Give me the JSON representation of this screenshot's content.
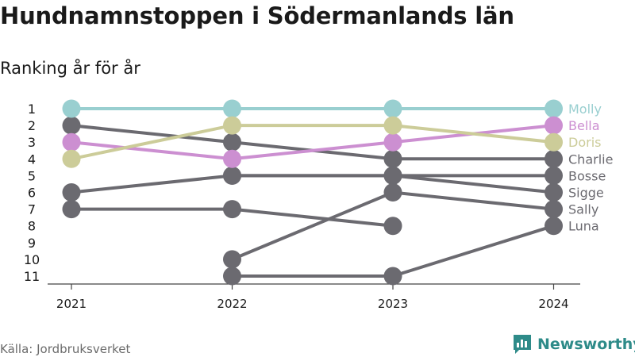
{
  "title": "Hundnamnstoppen i Södermanlands län",
  "subtitle": "Ranking år för år",
  "source": "Källa: Jordbruksverket",
  "brand": {
    "name": "Newsworthy",
    "logo_icon": "bar-chart-logo-icon",
    "color": "#2e8b89"
  },
  "chart_data": {
    "type": "line",
    "x": [
      "2021",
      "2022",
      "2023",
      "2024"
    ],
    "y_ticks": [
      "1",
      "2",
      "3",
      "4",
      "5",
      "6",
      "7",
      "8",
      "9",
      "10",
      "11"
    ],
    "ylim": [
      1,
      11
    ],
    "y_inverted": true,
    "grid": false,
    "series": [
      {
        "name": "Molly",
        "values": [
          1,
          1,
          1,
          1
        ],
        "color": "#99cfd0"
      },
      {
        "name": "Bella",
        "values": [
          3,
          4,
          3,
          2
        ],
        "color": "#cc8fd1"
      },
      {
        "name": "Doris",
        "values": [
          4,
          2,
          2,
          3
        ],
        "color": "#cccc99"
      },
      {
        "name": "Charlie",
        "values": [
          2,
          3,
          4,
          4
        ],
        "color": "#6b6a70"
      },
      {
        "name": "Bosse",
        "values": [
          6,
          5,
          5,
          5
        ],
        "color": "#6b6a70"
      },
      {
        "name": "Sigge",
        "values": [
          null,
          5,
          5,
          6
        ],
        "color": "#6b6a70"
      },
      {
        "name": "Sally",
        "values": [
          null,
          10,
          6,
          7
        ],
        "color": "#6b6a70"
      },
      {
        "name": "Luna",
        "values": [
          null,
          11,
          11,
          8
        ],
        "color": "#6b6a70"
      },
      {
        "name": "",
        "values": [
          7,
          7,
          8,
          null
        ],
        "color": "#6b6a70"
      }
    ]
  }
}
